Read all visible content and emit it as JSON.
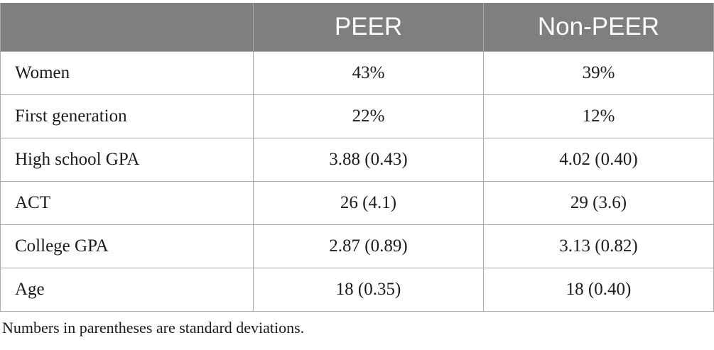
{
  "table": {
    "headers": [
      "",
      "PEER",
      "Non-PEER"
    ],
    "rows": [
      {
        "label": "Women",
        "peer": "43%",
        "non_peer": "39%"
      },
      {
        "label": "First generation",
        "peer": "22%",
        "non_peer": "12%"
      },
      {
        "label": "High school GPA",
        "peer": "3.88 (0.43)",
        "non_peer": "4.02 (0.40)"
      },
      {
        "label": "ACT",
        "peer": "26 (4.1)",
        "non_peer": "29 (3.6)"
      },
      {
        "label": "College GPA",
        "peer": "2.87 (0.89)",
        "non_peer": "3.13 (0.82)"
      },
      {
        "label": "Age",
        "peer": "18 (0.35)",
        "non_peer": "18 (0.40)"
      }
    ]
  },
  "footnote": "Numbers in parentheses are standard deviations.",
  "colors": {
    "header_background": "#7f7f7d",
    "header_text": "#ffffff",
    "border": "#a9a9a7",
    "body_text": "#1c1c1c"
  }
}
